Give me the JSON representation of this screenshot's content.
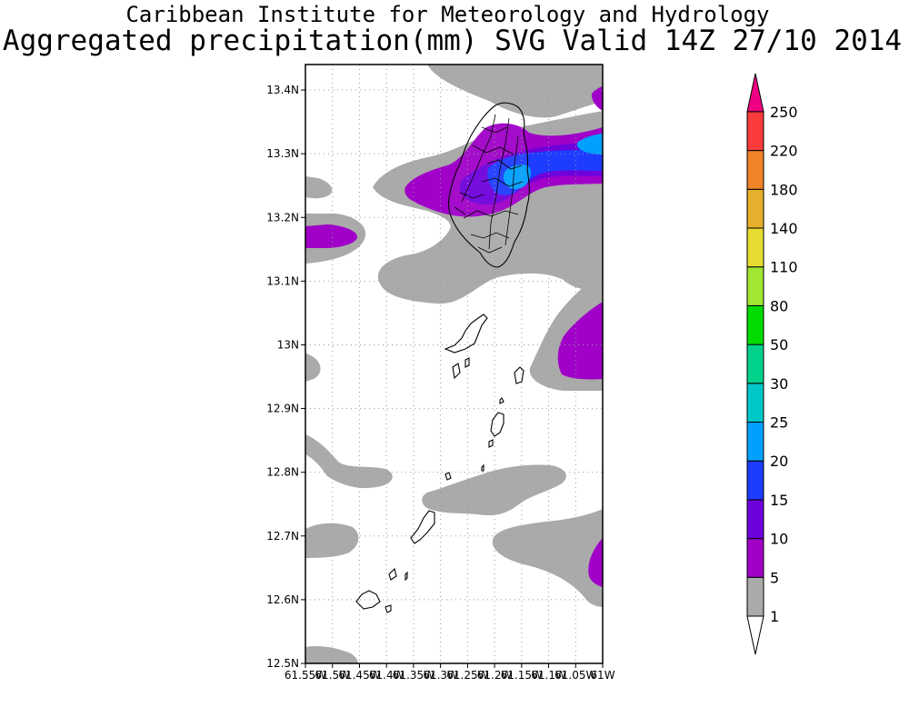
{
  "titles": {
    "line1": "Caribbean Institute for Meteorology and Hydrology",
    "line2": "Aggregated precipitation(mm) SVG Valid 14Z 27/10 2014"
  },
  "map": {
    "lat_labels": [
      "13.4N",
      "13.3N",
      "13.2N",
      "13.1N",
      "13N",
      "12.9N",
      "12.8N",
      "12.7N",
      "12.6N",
      "12.5N"
    ],
    "lon_labels": [
      "61.55W",
      "61.5W",
      "61.45W",
      "61.4W",
      "61.35W",
      "61.3W",
      "61.25W",
      "61.2W",
      "61.15W",
      "61.1W",
      "61.05W",
      "61W"
    ],
    "grid": true
  },
  "colorbar": {
    "labels": [
      "1",
      "5",
      "10",
      "15",
      "20",
      "25",
      "30",
      "50",
      "80",
      "110",
      "140",
      "180",
      "220",
      "250"
    ],
    "colors": [
      "#ffffff",
      "#aaaaaa",
      "#a000c8",
      "#6e00dc",
      "#1e3cff",
      "#00a0ff",
      "#00c8c8",
      "#00d28c",
      "#00dc00",
      "#a0e632",
      "#e6dc32",
      "#e6af2d",
      "#f08228",
      "#fa3c3c",
      "#f00082"
    ]
  }
}
